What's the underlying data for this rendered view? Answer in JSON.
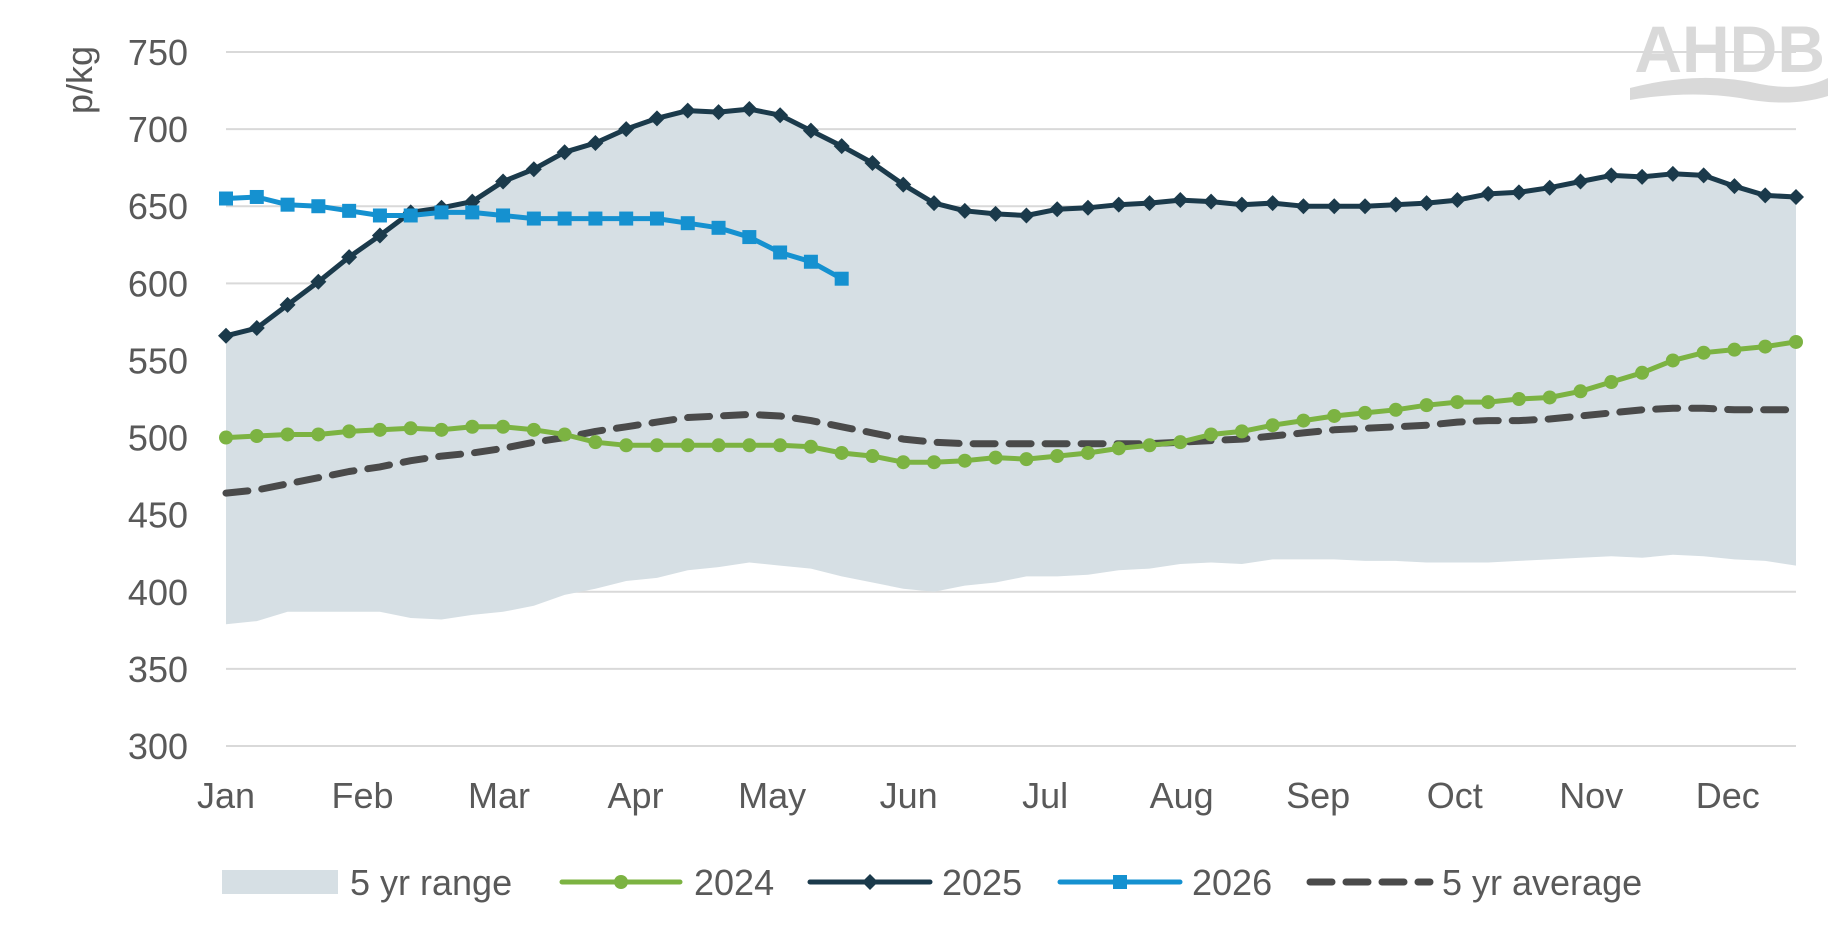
{
  "logo": {
    "text": "AHDB"
  },
  "chart_data": {
    "type": "line",
    "ylabel": "p/kg",
    "xlabel": "",
    "ylim": [
      300,
      750
    ],
    "yticks": [
      300,
      350,
      400,
      450,
      500,
      550,
      600,
      650,
      700,
      750
    ],
    "month_labels": [
      "Jan",
      "Feb",
      "Mar",
      "Apr",
      "May",
      "Jun",
      "Jul",
      "Aug",
      "Sep",
      "Oct",
      "Nov",
      "Dec"
    ],
    "weeks": 52,
    "grid": "horizontal",
    "legend_position": "bottom",
    "range": {
      "name": "5 yr range",
      "color": "#d6dfe4",
      "upper": [
        566,
        571,
        586,
        601,
        617,
        631,
        646,
        649,
        653,
        666,
        674,
        685,
        691,
        700,
        707,
        712,
        711,
        713,
        709,
        699,
        689,
        678,
        664,
        652,
        647,
        645,
        644,
        648,
        649,
        651,
        652,
        654,
        653,
        651,
        652,
        650,
        650,
        650,
        651,
        652,
        654,
        658,
        659,
        662,
        666,
        670,
        669,
        671,
        670,
        663,
        657,
        656
      ],
      "lower": [
        379,
        381,
        387,
        387,
        387,
        387,
        383,
        382,
        385,
        387,
        391,
        398,
        402,
        407,
        409,
        414,
        416,
        419,
        417,
        415,
        410,
        406,
        402,
        400,
        404,
        406,
        410,
        410,
        411,
        414,
        415,
        418,
        419,
        418,
        421,
        421,
        421,
        420,
        420,
        419,
        419,
        419,
        420,
        421,
        422,
        423,
        422,
        424,
        423,
        421,
        420,
        417
      ]
    },
    "series": [
      {
        "name": "2024",
        "color": "#7cb342",
        "marker": "circle",
        "dash": false,
        "values": [
          500,
          501,
          502,
          502,
          504,
          505,
          506,
          505,
          507,
          507,
          505,
          502,
          497,
          495,
          495,
          495,
          495,
          495,
          495,
          494,
          490,
          488,
          484,
          484,
          485,
          487,
          486,
          488,
          490,
          493,
          495,
          497,
          502,
          504,
          508,
          511,
          514,
          516,
          518,
          521,
          523,
          523,
          525,
          526,
          530,
          536,
          542,
          550,
          555,
          557,
          559,
          562
        ]
      },
      {
        "name": "2025",
        "color": "#1b3a4b",
        "marker": "diamond",
        "dash": false,
        "values": [
          566,
          571,
          586,
          601,
          617,
          631,
          646,
          649,
          653,
          666,
          674,
          685,
          691,
          700,
          707,
          712,
          711,
          713,
          709,
          699,
          689,
          678,
          664,
          652,
          647,
          645,
          644,
          648,
          649,
          651,
          652,
          654,
          653,
          651,
          652,
          650,
          650,
          650,
          651,
          652,
          654,
          658,
          659,
          662,
          666,
          670,
          669,
          671,
          670,
          663,
          657,
          656
        ]
      },
      {
        "name": "2026",
        "color": "#1591d0",
        "marker": "square",
        "dash": false,
        "values": [
          655,
          656,
          651,
          650,
          647,
          644,
          644,
          646,
          646,
          644,
          642,
          642,
          642,
          642,
          642,
          639,
          636,
          630,
          620,
          614,
          603
        ]
      },
      {
        "name": "5 yr average",
        "color": "#4a4a4a",
        "marker": "none",
        "dash": true,
        "values": [
          464,
          466,
          470,
          474,
          478,
          481,
          485,
          488,
          490,
          493,
          497,
          500,
          504,
          507,
          510,
          513,
          514,
          515,
          514,
          511,
          507,
          503,
          499,
          497,
          496,
          496,
          496,
          496,
          496,
          496,
          496,
          497,
          498,
          499,
          501,
          503,
          505,
          506,
          507,
          508,
          510,
          511,
          511,
          512,
          514,
          516,
          518,
          519,
          519,
          518,
          518,
          518
        ]
      }
    ]
  }
}
